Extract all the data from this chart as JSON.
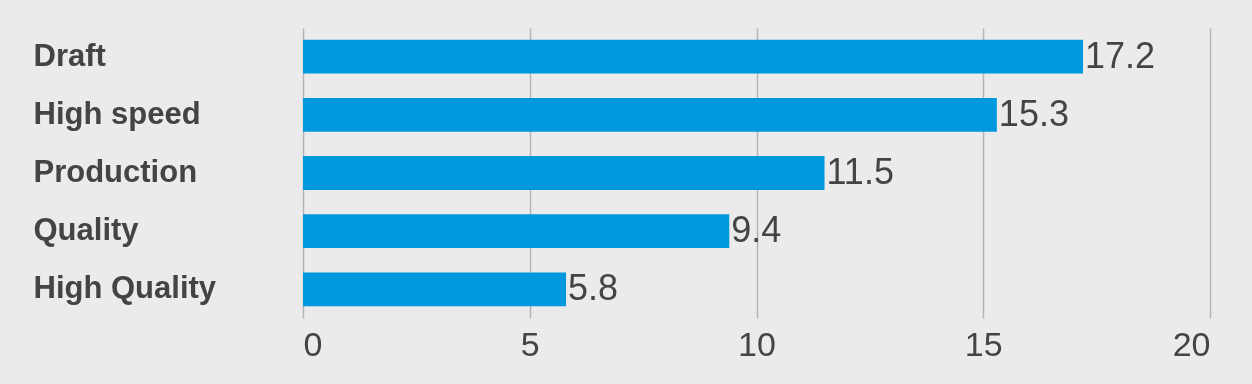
{
  "chart_data": {
    "type": "bar",
    "orientation": "horizontal",
    "categories": [
      "Draft",
      "High speed",
      "Production",
      "Quality",
      "High Quality"
    ],
    "values": [
      17.2,
      15.3,
      11.5,
      9.4,
      5.8
    ],
    "color": "#0099dd",
    "xlim": [
      0,
      20
    ],
    "xticks": [
      0,
      5,
      10,
      15,
      20
    ],
    "grid": "x",
    "data_labels": true
  }
}
